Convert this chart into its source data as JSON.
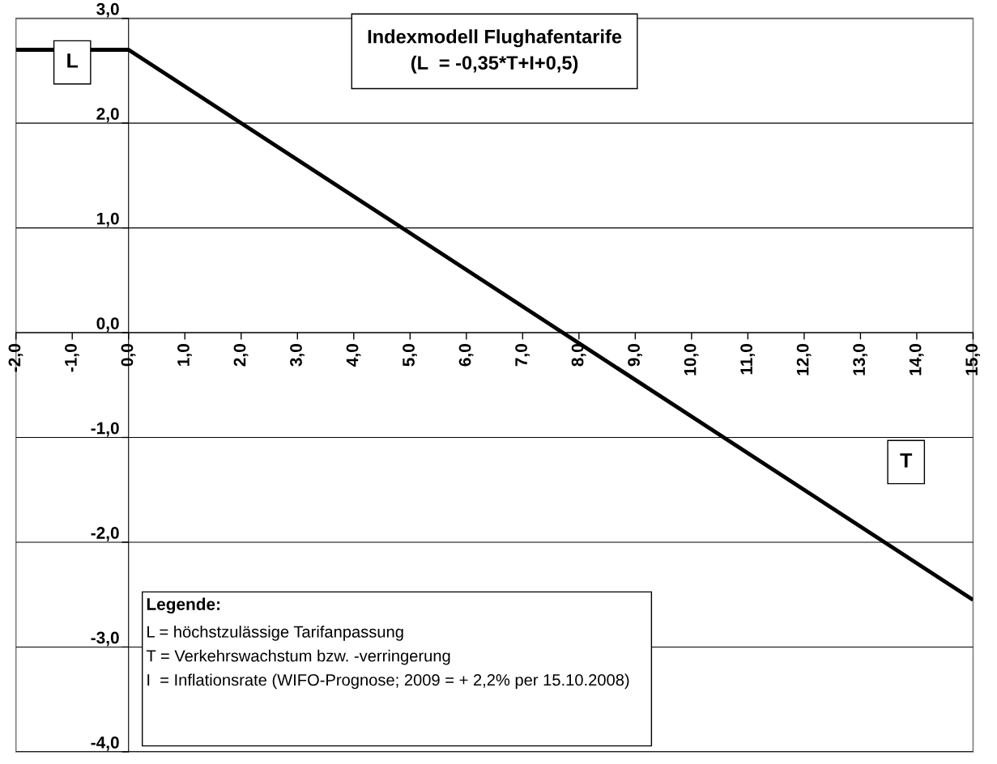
{
  "chart_data": {
    "type": "line",
    "title": "Indexmodell Flughafentarife",
    "subtitle": "(L  = -0,35*T+I+0,5)",
    "x": [
      -2,
      0,
      15
    ],
    "series": [
      {
        "color": "#000000",
        "values": [
          2.7,
          2.7,
          -2.55
        ]
      }
    ],
    "xlim": [
      -2,
      15
    ],
    "xticks": [
      {
        "value": -2,
        "label": "-2,0"
      },
      {
        "value": -1,
        "label": "-1,0"
      },
      {
        "value": 0,
        "label": "0,0"
      },
      {
        "value": 1,
        "label": "1,0"
      },
      {
        "value": 2,
        "label": "2,0"
      },
      {
        "value": 3,
        "label": "3,0"
      },
      {
        "value": 4,
        "label": "4,0"
      },
      {
        "value": 5,
        "label": "5,0"
      },
      {
        "value": 6,
        "label": "6,0"
      },
      {
        "value": 7,
        "label": "7,0"
      },
      {
        "value": 8,
        "label": "8,0"
      },
      {
        "value": 9,
        "label": "9,0"
      },
      {
        "value": 10,
        "label": "10,0"
      },
      {
        "value": 11,
        "label": "11,0"
      },
      {
        "value": 12,
        "label": "12,0"
      },
      {
        "value": 13,
        "label": "13,0"
      },
      {
        "value": 14,
        "label": "14,0"
      },
      {
        "value": 15,
        "label": "15,0"
      }
    ],
    "ylim": [
      -4,
      3
    ],
    "yticks": [
      {
        "value": -4,
        "label": "-4,0"
      },
      {
        "value": -3,
        "label": "-3,0"
      },
      {
        "value": -2,
        "label": "-2,0"
      },
      {
        "value": -1,
        "label": "-1,0"
      },
      {
        "value": 0,
        "label": "0,0"
      },
      {
        "value": 1,
        "label": "1,0"
      },
      {
        "value": 2,
        "label": "2,0"
      },
      {
        "value": 3,
        "label": "3,0"
      }
    ],
    "grid": "y",
    "line_style": "solid",
    "annotations": [
      {
        "text": "L",
        "x": -1,
        "y": 2.7
      },
      "T",
      "Legende:",
      "L = höchstzulässige Tarifanpassung",
      "T = Verkehrswachstum bzw. -verringerung",
      "I  = Inflationsrate (WIFO-Prognose; 2009 = + 2,2% per 15.10.2008)"
    ]
  }
}
